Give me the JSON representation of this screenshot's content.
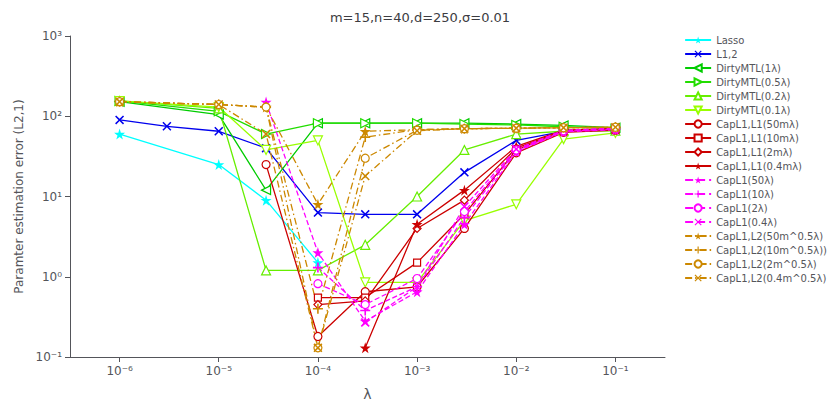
{
  "chart_data": {
    "type": "line",
    "title": "m=15,n=40,d=250,σ=0.01",
    "xlabel": "λ",
    "ylabel": "Paramter estimation error (L2,1)",
    "log": true,
    "grid": false,
    "legend": "upper right",
    "xlim": [
      3.162277660168379e-07,
      0.31622776601683794
    ],
    "ylim": [
      0.1,
      1000
    ],
    "xticks": [
      {
        "value": 1e-06,
        "label": "10⁻⁶"
      },
      {
        "value": 1e-05,
        "label": "10⁻⁵"
      },
      {
        "value": 0.0001,
        "label": "10⁻⁴"
      },
      {
        "value": 0.001,
        "label": "10⁻³"
      },
      {
        "value": 0.01,
        "label": "10⁻²"
      },
      {
        "value": 0.1,
        "label": "10⁻¹"
      }
    ],
    "yticks": [
      {
        "value": 0.1,
        "label": "10⁻¹"
      },
      {
        "value": 1,
        "label": "10⁰"
      },
      {
        "value": 10,
        "label": "10¹"
      },
      {
        "value": 100,
        "label": "10²"
      },
      {
        "value": 1000,
        "label": "10³"
      }
    ],
    "series": [
      {
        "name": "Lasso",
        "color": "#00FFFF",
        "line_style": "solid",
        "marker": "star",
        "x": [
          1e-06,
          1e-05,
          3e-05,
          0.0001
        ],
        "values": [
          60,
          25,
          9,
          1.5
        ]
      },
      {
        "name": "L1,2",
        "color": "#0000EE",
        "line_style": "solid",
        "marker": "x",
        "x": [
          1e-06,
          3e-06,
          1e-05,
          3e-05,
          0.0001,
          0.0003,
          0.001,
          0.003,
          0.01,
          0.03,
          0.1
        ],
        "values": [
          90,
          75,
          65,
          40,
          6.3,
          6.0,
          6.0,
          20,
          50,
          65,
          68
        ]
      },
      {
        "name": "DirtyMTL(1λ)",
        "color": "#00CC00",
        "line_style": "solid",
        "marker": "triangle-left",
        "x": [
          1e-06,
          1e-05,
          3e-05,
          0.0001,
          0.0003,
          0.001,
          0.003,
          0.01,
          0.03,
          0.1
        ],
        "values": [
          152,
          105,
          12,
          82,
          82,
          82,
          82,
          80,
          77,
          72
        ]
      },
      {
        "name": "DirtyMTL(0.5λ)",
        "color": "#22DD00",
        "line_style": "solid",
        "marker": "triangle-right",
        "x": [
          1e-06,
          1e-05,
          3e-05,
          0.0001,
          0.0003,
          0.001,
          0.003,
          0.01,
          0.03,
          0.1
        ],
        "values": [
          155,
          115,
          60,
          82,
          82,
          82,
          80,
          78,
          74,
          70
        ]
      },
      {
        "name": "DirtyMTL(0.2λ)",
        "color": "#66EE00",
        "line_style": "solid",
        "marker": "triangle-up",
        "x": [
          1e-06,
          1e-05,
          3e-05,
          0.0001,
          0.0003,
          0.001,
          0.003,
          0.01,
          0.03,
          0.1
        ],
        "values": [
          155,
          125,
          1.2,
          1.2,
          2.5,
          10,
          38,
          60,
          65,
          66
        ]
      },
      {
        "name": "DirtyMTL(0.1λ)",
        "color": "#99FF00",
        "line_style": "solid",
        "marker": "triangle-down",
        "x": [
          1e-06,
          1e-05,
          3e-05,
          0.0001,
          0.0003,
          0.001,
          0.003,
          0.01,
          0.03,
          0.1
        ],
        "values": [
          155,
          130,
          38,
          50,
          0.85,
          0.85,
          5,
          8,
          52,
          62
        ]
      },
      {
        "name": "CapL1,L1(50mλ)",
        "color": "#CC0000",
        "line_style": "solid",
        "marker": "circle",
        "x": [
          3e-05,
          0.0001,
          0.0003,
          0.001,
          0.003,
          0.01,
          0.03,
          0.1
        ],
        "values": [
          25,
          0.18,
          0.65,
          0.75,
          4.0,
          35,
          63,
          67
        ]
      },
      {
        "name": "CapL1,L1(10mλ)",
        "color": "#CC0000",
        "line_style": "solid",
        "marker": "square",
        "x": [
          0.0001,
          0.0003,
          0.001,
          0.003,
          0.01,
          0.03,
          0.1
        ],
        "values": [
          0.55,
          0.55,
          1.5,
          6.0,
          38,
          65,
          68
        ]
      },
      {
        "name": "CapL1,L1(2mλ)",
        "color": "#CC0000",
        "line_style": "solid",
        "marker": "diamond",
        "x": [
          0.0001,
          0.0003,
          0.001,
          0.003,
          0.01,
          0.03,
          0.1
        ],
        "values": [
          0.45,
          0.5,
          4.0,
          9.0,
          40,
          66,
          69
        ]
      },
      {
        "name": "CapL1,L1(0.4mλ)",
        "color": "#CC0000",
        "line_style": "solid",
        "marker": "star",
        "x": [
          0.0003,
          0.001,
          0.003,
          0.01,
          0.03,
          0.1
        ],
        "values": [
          0.13,
          4.5,
          12,
          42,
          67,
          70
        ]
      },
      {
        "name": "CapL1(50λ)",
        "color": "#FF00FF",
        "line_style": "dashed",
        "marker": "star",
        "x": [
          3e-05,
          0.0001,
          0.0003,
          0.001,
          0.003,
          0.01,
          0.03,
          0.1
        ],
        "values": [
          150,
          2.0,
          0.28,
          0.65,
          4.5,
          36,
          64,
          68
        ]
      },
      {
        "name": "CapL1(10λ)",
        "color": "#FF00FF",
        "line_style": "dashed",
        "marker": "plus",
        "x": [
          0.0001,
          0.0003,
          0.001,
          0.003,
          0.01,
          0.03,
          0.1
        ],
        "values": [
          1.3,
          0.38,
          0.75,
          5.5,
          37,
          65,
          69
        ]
      },
      {
        "name": "CapL1(2λ)",
        "color": "#FF00FF",
        "line_style": "dashed",
        "marker": "circle",
        "x": [
          0.0001,
          0.0003,
          0.001,
          0.003,
          0.01,
          0.03,
          0.1
        ],
        "values": [
          0.82,
          0.45,
          0.95,
          6.5,
          38,
          66,
          70
        ]
      },
      {
        "name": "CapL1(0.4λ)",
        "color": "#FF00FF",
        "line_style": "dashed",
        "marker": "x",
        "x": [
          0.0003,
          0.001,
          0.003,
          0.01,
          0.03,
          0.1
        ],
        "values": [
          0.27,
          0.75,
          7.5,
          39,
          67,
          71
        ]
      },
      {
        "name": "CapL1,L2(50m^0.5λ)",
        "color": "#CC8800",
        "line_style": "dashdot",
        "marker": "star",
        "x": [
          1e-06,
          1e-05,
          3e-05,
          0.0001,
          0.0003,
          0.001,
          0.003,
          0.01,
          0.03,
          0.1
        ],
        "values": [
          152,
          140,
          130,
          8.0,
          65,
          68,
          70,
          71,
          72,
          73
        ]
      },
      {
        "name": "CapL1,L2(10m^0.5λ))",
        "color": "#CC8800",
        "line_style": "dashdot",
        "marker": "plus",
        "x": [
          1e-06,
          1e-05,
          3e-05,
          0.0001,
          0.0003,
          0.001,
          0.003,
          0.01,
          0.03,
          0.1
        ],
        "values": [
          152,
          140,
          130,
          0.4,
          55,
          68,
          70,
          71,
          72,
          73
        ]
      },
      {
        "name": "CapL1,L2(2m^0.5λ)",
        "color": "#CC8800",
        "line_style": "dashdot",
        "marker": "circle",
        "x": [
          1e-06,
          1e-05,
          3e-05,
          0.0001,
          0.0003,
          0.001,
          0.003,
          0.01,
          0.03,
          0.1
        ],
        "values": [
          152,
          140,
          130,
          0.13,
          30,
          67,
          70,
          71,
          72,
          73
        ]
      },
      {
        "name": "CapL1,L2(0.4m^0.5λ)",
        "color": "#CC8800",
        "line_style": "dashdot",
        "marker": "x",
        "x": [
          1e-06,
          1e-05,
          3e-05,
          0.0001,
          0.0003,
          0.001,
          0.003,
          0.01,
          0.03,
          0.1
        ],
        "values": [
          152,
          140,
          60,
          0.13,
          18,
          66,
          70,
          71,
          72,
          73
        ]
      }
    ]
  }
}
